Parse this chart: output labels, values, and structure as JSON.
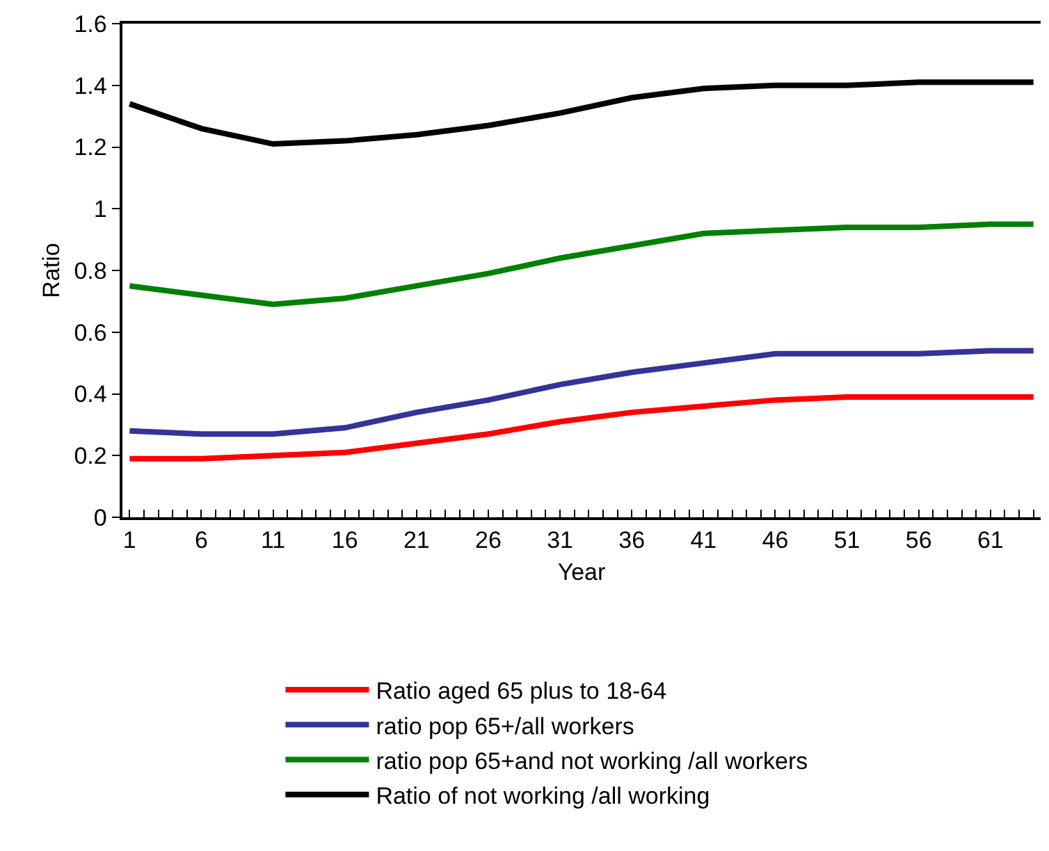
{
  "chart_data": {
    "type": "line",
    "xlabel": "Year",
    "ylabel": "Ratio",
    "x": [
      1,
      6,
      11,
      16,
      21,
      26,
      31,
      36,
      41,
      46,
      51,
      56,
      61,
      64
    ],
    "xlim": [
      0.5,
      64.5
    ],
    "xticks": [
      1,
      6,
      11,
      16,
      21,
      26,
      31,
      36,
      41,
      46,
      51,
      56,
      61
    ],
    "ylim": [
      0,
      1.6
    ],
    "yticks": [
      0,
      0.2,
      0.4,
      0.6,
      0.8,
      1,
      1.2,
      1.4,
      1.6
    ],
    "grid": false,
    "legend": "bottom",
    "marker": "none",
    "line_style": "solid",
    "series": [
      {
        "name": "Ratio aged 65 plus to 18-64",
        "color": "#ff0000",
        "values": [
          0.19,
          0.19,
          0.2,
          0.21,
          0.24,
          0.27,
          0.31,
          0.34,
          0.36,
          0.38,
          0.39,
          0.39,
          0.39,
          0.39
        ]
      },
      {
        "name": "ratio pop 65+/all workers",
        "color": "#333399",
        "values": [
          0.28,
          0.27,
          0.27,
          0.29,
          0.34,
          0.38,
          0.43,
          0.47,
          0.5,
          0.53,
          0.53,
          0.53,
          0.54,
          0.54
        ]
      },
      {
        "name": "ratio pop 65+and not working /all workers",
        "color": "#008000",
        "values": [
          0.75,
          0.72,
          0.69,
          0.71,
          0.75,
          0.79,
          0.84,
          0.88,
          0.92,
          0.93,
          0.94,
          0.94,
          0.95,
          0.95
        ]
      },
      {
        "name": "Ratio of not working /all working",
        "color": "#000000",
        "values": [
          1.34,
          1.26,
          1.21,
          1.22,
          1.24,
          1.27,
          1.31,
          1.36,
          1.39,
          1.4,
          1.4,
          1.41,
          1.41,
          1.41
        ]
      }
    ]
  }
}
